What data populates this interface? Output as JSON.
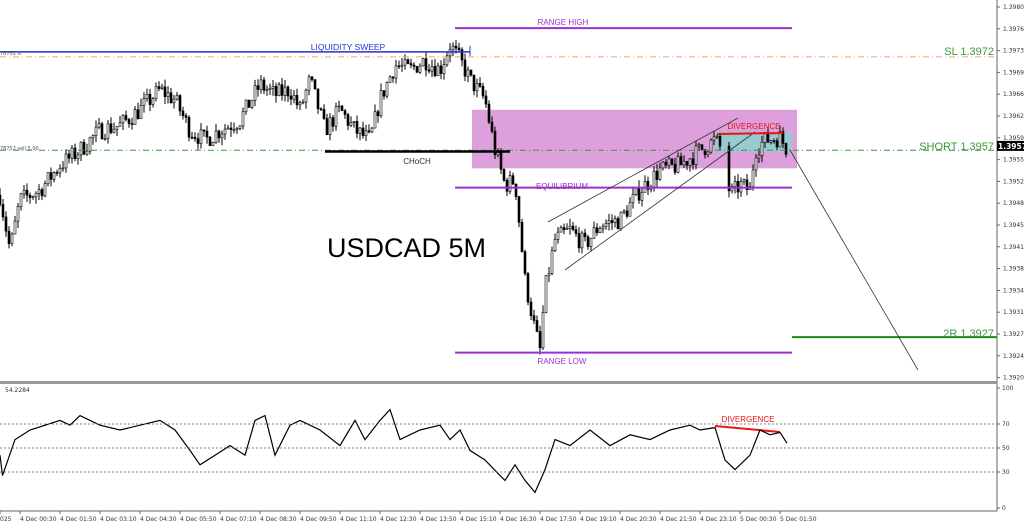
{
  "chart_data": [
    {
      "type": "candlestick",
      "title": "USDCAD 5M",
      "symbol": "USDCAD",
      "timeframe": "5M",
      "ylim": [
        1.3919,
        1.39815
      ],
      "y_ticks": [
        "1.39800",
        "1.39765",
        "1.39730",
        "1.39695",
        "1.39660",
        "1.39625",
        "1.39590",
        "1.39555",
        "1.39520",
        "1.39485",
        "1.39450",
        "1.39415",
        "1.39380",
        "1.39345",
        "1.39310",
        "1.39275",
        "1.39240",
        "1.39205"
      ],
      "x_ticks": [
        "025",
        "4 Dec 00:30",
        "4 Dec 01:50",
        "4 Dec 03:10",
        "4 Dec 04:30",
        "4 Dec 05:50",
        "4 Dec 07:10",
        "4 Dec 08:30",
        "4 Dec 09:50",
        "4 Dec 11:10",
        "4 Dec 12:30",
        "4 Dec 13:50",
        "4 Dec 15:10",
        "4 Dec 16:30",
        "4 Dec 17:50",
        "4 Dec 19:10",
        "4 Dec 20:30",
        "4 Dec 21:50",
        "4 Dec 23:10",
        "5 Dec 00:30",
        "5 Dec 01:50"
      ],
      "current_price": "1.39577",
      "price_path": [
        [
          "3 Dec 23:50",
          1.39498
        ],
        [
          "4 Dec 00:10",
          1.3941
        ],
        [
          "4 Dec 00:30",
          1.3949
        ],
        [
          "4 Dec 01:10",
          1.39506
        ],
        [
          "4 Dec 01:50",
          1.39546
        ],
        [
          "4 Dec 02:30",
          1.3957
        ],
        [
          "4 Dec 03:10",
          1.39602
        ],
        [
          "4 Dec 03:50",
          1.3961
        ],
        [
          "4 Dec 04:30",
          1.39635
        ],
        [
          "4 Dec 05:10",
          1.39667
        ],
        [
          "4 Dec 05:40",
          1.39651
        ],
        [
          "4 Dec 06:10",
          1.39602
        ],
        [
          "4 Dec 06:40",
          1.39586
        ],
        [
          "4 Dec 07:10",
          1.39602
        ],
        [
          "4 Dec 07:50",
          1.39619
        ],
        [
          "4 Dec 08:30",
          1.39675
        ],
        [
          "4 Dec 09:00",
          1.39659
        ],
        [
          "4 Dec 09:30",
          1.39667
        ],
        [
          "4 Dec 09:50",
          1.39635
        ],
        [
          "4 Dec 10:10",
          1.39683
        ],
        [
          "4 Dec 10:40",
          1.39602
        ],
        [
          "4 Dec 11:10",
          1.39635
        ],
        [
          "4 Dec 11:40",
          1.39602
        ],
        [
          "4 Dec 12:10",
          1.39586
        ],
        [
          "4 Dec 12:30",
          1.39651
        ],
        [
          "4 Dec 13:00",
          1.39707
        ],
        [
          "4 Dec 13:30",
          1.39699
        ],
        [
          "4 Dec 14:00",
          1.39715
        ],
        [
          "4 Dec 14:30",
          1.39699
        ],
        [
          "4 Dec 14:50",
          1.39739
        ],
        [
          "4 Dec 15:10",
          1.39715
        ],
        [
          "4 Dec 15:30",
          1.39683
        ],
        [
          "4 Dec 16:00",
          1.39651
        ],
        [
          "4 Dec 16:20",
          1.3957
        ],
        [
          "4 Dec 16:40",
          1.39514
        ],
        [
          "4 Dec 17:00",
          1.39522
        ],
        [
          "4 Dec 17:20",
          1.39362
        ],
        [
          "4 Dec 17:40",
          1.39281
        ],
        [
          "4 Dec 17:50",
          1.39249
        ],
        [
          "4 Dec 18:00",
          1.39346
        ],
        [
          "4 Dec 18:20",
          1.39426
        ],
        [
          "4 Dec 18:50",
          1.39442
        ],
        [
          "4 Dec 19:20",
          1.39418
        ],
        [
          "4 Dec 19:50",
          1.3945
        ],
        [
          "4 Dec 20:30",
          1.39458
        ],
        [
          "4 Dec 21:10",
          1.39506
        ],
        [
          "4 Dec 21:50",
          1.39538
        ],
        [
          "4 Dec 22:30",
          1.39546
        ],
        [
          "4 Dec 23:10",
          1.3957
        ],
        [
          "4 Dec 23:40",
          1.39586
        ],
        [
          "4 Dec 23:55",
          1.3957
        ],
        [
          "5 Dec 00:10",
          1.39498
        ],
        [
          "5 Dec 00:30",
          1.39514
        ],
        [
          "5 Dec 00:50",
          1.39506
        ],
        [
          "5 Dec 01:00",
          1.3957
        ],
        [
          "5 Dec 01:20",
          1.39586
        ],
        [
          "5 Dec 01:50",
          1.39591
        ],
        [
          "5 Dec 02:05",
          1.3957
        ]
      ]
    },
    {
      "type": "line",
      "indicator_value": "54.2284",
      "ylim": [
        0,
        100
      ],
      "y_ticks": [
        "100",
        "70",
        "50",
        "30",
        "0"
      ],
      "levels": [
        70,
        50,
        30
      ],
      "values_path": [
        [
          "3 Dec 23:50",
          44
        ],
        [
          "3 Dec 23:55",
          27
        ],
        [
          "4 Dec 00:20",
          57
        ],
        [
          "4 Dec 00:50",
          65
        ],
        [
          "4 Dec 01:50",
          73
        ],
        [
          "4 Dec 02:10",
          69
        ],
        [
          "4 Dec 02:30",
          77
        ],
        [
          "4 Dec 03:10",
          69
        ],
        [
          "4 Dec 03:50",
          65
        ],
        [
          "4 Dec 04:30",
          69
        ],
        [
          "4 Dec 05:10",
          73
        ],
        [
          "4 Dec 05:40",
          65
        ],
        [
          "4 Dec 06:10",
          48
        ],
        [
          "4 Dec 06:30",
          36
        ],
        [
          "4 Dec 07:00",
          44
        ],
        [
          "4 Dec 07:30",
          52
        ],
        [
          "4 Dec 08:00",
          44
        ],
        [
          "4 Dec 08:20",
          73
        ],
        [
          "4 Dec 08:40",
          77
        ],
        [
          "4 Dec 09:00",
          44
        ],
        [
          "4 Dec 09:30",
          69
        ],
        [
          "4 Dec 09:50",
          73
        ],
        [
          "4 Dec 10:30",
          65
        ],
        [
          "4 Dec 11:10",
          52
        ],
        [
          "4 Dec 11:40",
          73
        ],
        [
          "4 Dec 12:00",
          57
        ],
        [
          "4 Dec 12:30",
          73
        ],
        [
          "4 Dec 12:50",
          82
        ],
        [
          "4 Dec 13:10",
          57
        ],
        [
          "4 Dec 13:50",
          65
        ],
        [
          "4 Dec 14:30",
          69
        ],
        [
          "4 Dec 14:50",
          57
        ],
        [
          "4 Dec 15:10",
          65
        ],
        [
          "4 Dec 15:30",
          48
        ],
        [
          "4 Dec 16:00",
          40
        ],
        [
          "4 Dec 16:30",
          27
        ],
        [
          "4 Dec 16:40",
          23
        ],
        [
          "4 Dec 17:00",
          36
        ],
        [
          "4 Dec 17:20",
          23
        ],
        [
          "4 Dec 17:40",
          13
        ],
        [
          "4 Dec 18:00",
          32
        ],
        [
          "4 Dec 18:20",
          57
        ],
        [
          "4 Dec 18:50",
          52
        ],
        [
          "4 Dec 19:30",
          65
        ],
        [
          "4 Dec 20:10",
          52
        ],
        [
          "4 Dec 20:50",
          61
        ],
        [
          "4 Dec 21:30",
          57
        ],
        [
          "4 Dec 22:10",
          65
        ],
        [
          "4 Dec 22:50",
          69
        ],
        [
          "4 Dec 23:10",
          65
        ],
        [
          "4 Dec 23:40",
          67
        ],
        [
          "5 Dec 00:00",
          40
        ],
        [
          "5 Dec 00:20",
          32
        ],
        [
          "5 Dec 00:50",
          44
        ],
        [
          "5 Dec 01:10",
          65
        ],
        [
          "5 Dec 01:30",
          61
        ],
        [
          "5 Dec 01:50",
          63
        ],
        [
          "5 Dec 02:04",
          54
        ]
      ]
    }
  ],
  "annotations": {
    "title": "USDCAD 5M",
    "range_high": {
      "label": "RANGE HIGH",
      "price": 1.39766,
      "color": "#9b30d0"
    },
    "liquidity_sweep": {
      "label": "LIQUIDITY SWEEP",
      "price": 1.39728,
      "color": "#2233cc"
    },
    "stop_loss": {
      "label": "SL 1.3972",
      "price": 1.3972,
      "color": "#f0a070"
    },
    "short_entry": {
      "label": "SHORT 1.3957",
      "price": 1.3957,
      "color": "#3a9a3a"
    },
    "choch": {
      "label": "CHoCH",
      "price": 1.39568
    },
    "equilibrium": {
      "label": "EQUILIBRIUM",
      "price": 1.3951
    },
    "range_low": {
      "label": "RANGE LOW",
      "price": 1.39245
    },
    "target": {
      "label": "2R 1.3927",
      "price": 1.3927,
      "color": "#1a8a1a"
    },
    "divergence_price": "DIVERGENCE",
    "divergence_rsi": "DIVERGENCE",
    "order_sl_tag": "78752 sl",
    "order_tag": "78752 sell 5.00",
    "zone_color": "#dda0dd",
    "sub_zone_color": "#8fcfcf",
    "divergence_color": "#ee1111"
  }
}
